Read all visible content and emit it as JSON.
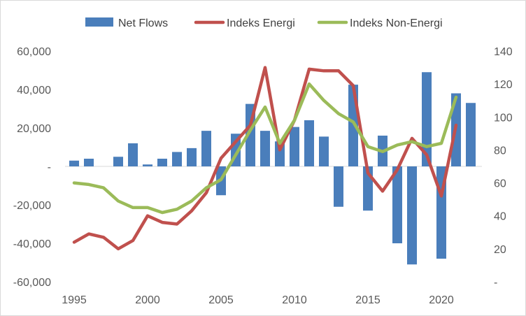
{
  "chart_data": {
    "type": "bar",
    "title": "",
    "xlabel": "",
    "ylabel": "",
    "y2label": "",
    "x_ticks": [
      "1995",
      "2000",
      "2005",
      "2010",
      "2015",
      "2020"
    ],
    "x_tick_years": [
      1995,
      2000,
      2005,
      2010,
      2015,
      2020
    ],
    "xlim": [
      1995,
      2022
    ],
    "ylim": [
      -60000,
      60000
    ],
    "y_ticks": [
      -60000,
      -40000,
      -20000,
      0,
      20000,
      40000,
      60000
    ],
    "y_tick_labels": [
      "-60,000",
      "-40,000",
      "-20,000",
      "-",
      "20,000",
      "40,000",
      "60,000"
    ],
    "y2lim": [
      0,
      140
    ],
    "y2_ticks": [
      0,
      20,
      40,
      60,
      80,
      100,
      120,
      140
    ],
    "y2_tick_labels": [
      "-",
      "20",
      "40",
      "60",
      "80",
      "100",
      "120",
      "140"
    ],
    "grid": false,
    "legend_position": "top",
    "series": [
      {
        "name": "Net Flows",
        "type": "bar",
        "axis": "left",
        "color": "#4a7ebb",
        "x": [
          1995,
          1996,
          1997,
          1998,
          1999,
          2000,
          2001,
          2002,
          2003,
          2004,
          2005,
          2006,
          2007,
          2008,
          2009,
          2010,
          2011,
          2012,
          2013,
          2014,
          2015,
          2016,
          2017,
          2018,
          2019,
          2020,
          2021,
          2022
        ],
        "values": [
          3000,
          4000,
          0,
          5000,
          12000,
          1000,
          4000,
          7500,
          9500,
          18500,
          -15000,
          17000,
          32500,
          18500,
          13000,
          20500,
          24000,
          15500,
          -21000,
          42500,
          -23000,
          16000,
          -40000,
          -51000,
          49000,
          -48000,
          38000,
          33000
        ]
      },
      {
        "name": "Indeks Energi",
        "type": "line",
        "axis": "right",
        "color": "#c0504d",
        "x": [
          1995,
          1996,
          1997,
          1998,
          1999,
          2000,
          2001,
          2002,
          2003,
          2004,
          2005,
          2006,
          2007,
          2008,
          2009,
          2010,
          2011,
          2012,
          2013,
          2014,
          2015,
          2016,
          2017,
          2018,
          2019,
          2020,
          2021
        ],
        "values": [
          24,
          29,
          27,
          20,
          25,
          40,
          36,
          35,
          43,
          54,
          75,
          85,
          95,
          130,
          80,
          98,
          129,
          128,
          128,
          119,
          66,
          55,
          68,
          87,
          77,
          52,
          95
        ]
      },
      {
        "name": "Indeks Non-Energi",
        "type": "line",
        "axis": "right",
        "color": "#9bbb59",
        "x": [
          1995,
          1996,
          1997,
          1998,
          1999,
          2000,
          2001,
          2002,
          2003,
          2004,
          2005,
          2006,
          2007,
          2008,
          2009,
          2010,
          2011,
          2012,
          2013,
          2014,
          2015,
          2016,
          2017,
          2018,
          2019,
          2020,
          2021
        ],
        "values": [
          60,
          59,
          57,
          49,
          45,
          45,
          42,
          44,
          49,
          57,
          62,
          77,
          92,
          106,
          84,
          98,
          120,
          110,
          102,
          97,
          82,
          79,
          83,
          85,
          82,
          84,
          112
        ]
      }
    ]
  }
}
